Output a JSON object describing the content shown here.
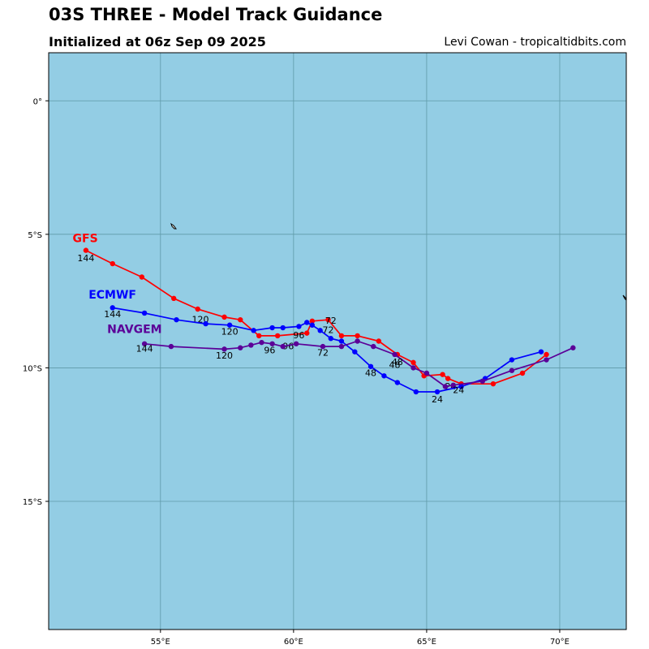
{
  "header": {
    "title": "03S THREE - Model Track Guidance",
    "subtitle": "Initialized at 06z Sep 09 2025",
    "credit": "Levi Cowan - tropicaltidbits.com"
  },
  "map": {
    "ocean_color": "#93cde4",
    "grid_color": "#5f9aa8",
    "lon_range": [
      50.8,
      72.5
    ],
    "lat_range": [
      -19.8,
      1.8
    ],
    "lon_ticks": [
      {
        "value": 55,
        "label": "55°E"
      },
      {
        "value": 60,
        "label": "60°E"
      },
      {
        "value": 65,
        "label": "65°E"
      },
      {
        "value": 70,
        "label": "70°E"
      }
    ],
    "lat_ticks": [
      {
        "value": 0,
        "label": "0°"
      },
      {
        "value": -5,
        "label": "5°S"
      },
      {
        "value": -10,
        "label": "10°S"
      },
      {
        "value": -15,
        "label": "15°S"
      }
    ]
  },
  "tracks": [
    {
      "model": "GFS",
      "color": "#ff0000",
      "label_pos": [
        51.7,
        -5.3
      ],
      "points": [
        [
          69.5,
          -9.5
        ],
        [
          68.6,
          -10.2
        ],
        [
          67.5,
          -10.6
        ],
        [
          66.3,
          -10.6
        ],
        [
          65.8,
          -10.4
        ],
        [
          65.6,
          -10.25
        ],
        [
          64.9,
          -10.3
        ],
        [
          64.5,
          -9.8
        ],
        [
          63.9,
          -9.5
        ],
        [
          63.2,
          -9.0
        ],
        [
          62.4,
          -8.8
        ],
        [
          61.8,
          -8.8
        ],
        [
          61.3,
          -8.2
        ],
        [
          60.7,
          -8.25
        ],
        [
          60.5,
          -8.7
        ],
        [
          59.4,
          -8.8
        ],
        [
          58.7,
          -8.8
        ],
        [
          58.0,
          -8.2
        ],
        [
          57.4,
          -8.1
        ],
        [
          56.4,
          -7.8
        ],
        [
          55.5,
          -7.4
        ],
        [
          54.3,
          -6.6
        ],
        [
          53.2,
          -6.1
        ],
        [
          52.2,
          -5.6
        ]
      ],
      "hour_labels": [
        {
          "text": "144",
          "pos": [
            52.2,
            -6.0
          ]
        },
        {
          "text": "120",
          "pos": [
            56.5,
            -8.3
          ]
        },
        {
          "text": "96",
          "pos": [
            60.2,
            -8.9
          ]
        },
        {
          "text": "72",
          "pos": [
            61.3,
            -8.7
          ]
        },
        {
          "text": "48",
          "pos": [
            63.8,
            -10.0
          ]
        },
        {
          "text": "24",
          "pos": [
            65.9,
            -10.8
          ]
        }
      ]
    },
    {
      "model": "ECMWF",
      "color": "#0000ff",
      "label_pos": [
        52.3,
        -7.4
      ],
      "points": [
        [
          69.3,
          -9.4
        ],
        [
          68.2,
          -9.7
        ],
        [
          67.2,
          -10.4
        ],
        [
          66.3,
          -10.7
        ],
        [
          65.4,
          -10.9
        ],
        [
          64.6,
          -10.9
        ],
        [
          63.9,
          -10.55
        ],
        [
          63.4,
          -10.3
        ],
        [
          62.9,
          -9.95
        ],
        [
          62.3,
          -9.4
        ],
        [
          61.8,
          -9.0
        ],
        [
          61.4,
          -8.9
        ],
        [
          61.0,
          -8.6
        ],
        [
          60.7,
          -8.4
        ],
        [
          60.5,
          -8.3
        ],
        [
          60.2,
          -8.45
        ],
        [
          59.6,
          -8.5
        ],
        [
          59.2,
          -8.5
        ],
        [
          58.5,
          -8.6
        ],
        [
          57.6,
          -8.4
        ],
        [
          56.7,
          -8.35
        ],
        [
          55.6,
          -8.2
        ],
        [
          54.4,
          -7.95
        ],
        [
          53.2,
          -7.75
        ]
      ],
      "hour_labels": [
        {
          "text": "144",
          "pos": [
            53.2,
            -8.1
          ]
        },
        {
          "text": "120",
          "pos": [
            57.6,
            -8.75
          ]
        },
        {
          "text": "96",
          "pos": [
            59.8,
            -9.3
          ]
        },
        {
          "text": "72",
          "pos": [
            61.4,
            -8.35
          ]
        },
        {
          "text": "48",
          "pos": [
            62.9,
            -10.3
          ]
        },
        {
          "text": "24",
          "pos": [
            65.4,
            -11.3
          ]
        }
      ]
    },
    {
      "model": "NAVGEM",
      "color": "#5b0098",
      "label_pos": [
        53.0,
        -8.7
      ],
      "points": [
        [
          70.5,
          -9.25
        ],
        [
          69.5,
          -9.7
        ],
        [
          68.2,
          -10.1
        ],
        [
          67.1,
          -10.5
        ],
        [
          66.0,
          -10.65
        ],
        [
          65.7,
          -10.7
        ],
        [
          65.0,
          -10.2
        ],
        [
          64.5,
          -10.0
        ],
        [
          63.8,
          -9.5
        ],
        [
          63.0,
          -9.2
        ],
        [
          62.4,
          -9.0
        ],
        [
          61.8,
          -9.2
        ],
        [
          61.1,
          -9.2
        ],
        [
          60.1,
          -9.1
        ],
        [
          59.6,
          -9.2
        ],
        [
          59.2,
          -9.1
        ],
        [
          58.8,
          -9.05
        ],
        [
          58.4,
          -9.15
        ],
        [
          58.0,
          -9.25
        ],
        [
          57.4,
          -9.3
        ],
        [
          55.4,
          -9.2
        ],
        [
          54.4,
          -9.1
        ]
      ],
      "hour_labels": [
        {
          "text": "144",
          "pos": [
            54.4,
            -9.4
          ]
        },
        {
          "text": "120",
          "pos": [
            57.4,
            -9.65
          ]
        },
        {
          "text": "96",
          "pos": [
            59.1,
            -9.45
          ]
        },
        {
          "text": "72",
          "pos": [
            61.1,
            -9.55
          ]
        },
        {
          "text": "48",
          "pos": [
            63.9,
            -9.9
          ]
        },
        {
          "text": "24",
          "pos": [
            66.2,
            -10.95
          ]
        }
      ]
    }
  ]
}
